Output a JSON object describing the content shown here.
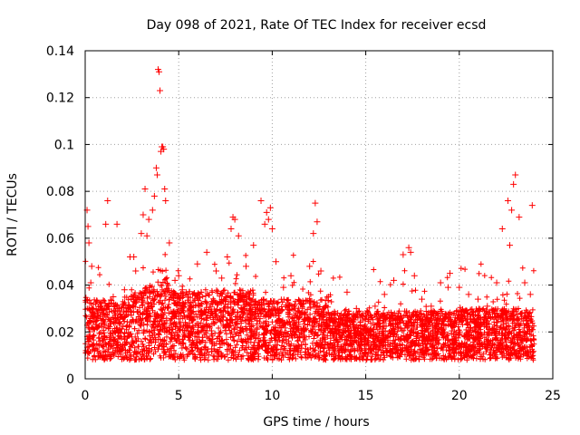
{
  "chart_data": {
    "type": "scatter",
    "title": "Day 098 of 2021, Rate Of TEC Index for receiver ecsd",
    "xlabel": "GPS time / hours",
    "ylabel": "ROTI / TECUs",
    "xlim": [
      0,
      25
    ],
    "ylim": [
      0,
      0.14
    ],
    "x_ticks": [
      "0",
      "5",
      "10",
      "15",
      "20",
      "25"
    ],
    "y_ticks": [
      "0",
      "0.02",
      "0.04",
      "0.06",
      "0.08",
      "0.1",
      "0.12",
      "0.14"
    ],
    "grid": true,
    "marker": "+",
    "color": "#ff0000",
    "series": [
      {
        "x": [
          0.1,
          0.2,
          0.3,
          0.4,
          0.6,
          0.8,
          1.0,
          1.2,
          1.5,
          1.8,
          2.1,
          2.4,
          2.7,
          3.0,
          3.2,
          3.4,
          3.6,
          3.8,
          3.9,
          4.0,
          4.1,
          4.2,
          4.3,
          4.5,
          4.8,
          5.2,
          5.6,
          6.0,
          6.5,
          7.0,
          7.3,
          7.6,
          7.9,
          8.2,
          8.6,
          9.0,
          9.4,
          9.7,
          9.9,
          10.2,
          10.6,
          11.0,
          11.5,
          12.0,
          12.3,
          12.6,
          13.0,
          13.5,
          14.0,
          14.5,
          15.0,
          15.5,
          16.0,
          16.5,
          17.0,
          17.3,
          17.6,
          18.0,
          18.5,
          19.0,
          19.5,
          20.0,
          20.5,
          21.0,
          21.5,
          22.0,
          22.3,
          22.6,
          22.8,
          23.0,
          23.2,
          23.5,
          23.8,
          0.15,
          0.35,
          1.1,
          1.7,
          2.6,
          3.1,
          3.3,
          3.7,
          3.85,
          3.95,
          4.05,
          4.15,
          4.25,
          5.0,
          6.2,
          7.8,
          8.0,
          9.6,
          9.8,
          10.0,
          12.2,
          12.4,
          17.4,
          19.4,
          22.7,
          22.9,
          23.9
        ],
        "y": [
          0.072,
          0.058,
          0.041,
          0.028,
          0.022,
          0.031,
          0.018,
          0.076,
          0.035,
          0.029,
          0.038,
          0.052,
          0.046,
          0.062,
          0.081,
          0.068,
          0.072,
          0.09,
          0.132,
          0.123,
          0.099,
          0.098,
          0.076,
          0.058,
          0.042,
          0.038,
          0.031,
          0.049,
          0.054,
          0.046,
          0.043,
          0.052,
          0.069,
          0.061,
          0.048,
          0.057,
          0.076,
          0.071,
          0.073,
          0.05,
          0.039,
          0.044,
          0.032,
          0.048,
          0.075,
          0.046,
          0.035,
          0.028,
          0.037,
          0.03,
          0.027,
          0.031,
          0.036,
          0.042,
          0.053,
          0.056,
          0.044,
          0.034,
          0.031,
          0.041,
          0.045,
          0.039,
          0.036,
          0.034,
          0.031,
          0.041,
          0.064,
          0.076,
          0.072,
          0.087,
          0.069,
          0.041,
          0.036,
          0.065,
          0.048,
          0.066,
          0.066,
          0.052,
          0.07,
          0.061,
          0.078,
          0.087,
          0.131,
          0.097,
          0.099,
          0.081,
          0.044,
          0.037,
          0.064,
          0.068,
          0.066,
          0.068,
          0.064,
          0.062,
          0.067,
          0.054,
          0.039,
          0.057,
          0.083,
          0.074
        ]
      }
    ]
  }
}
